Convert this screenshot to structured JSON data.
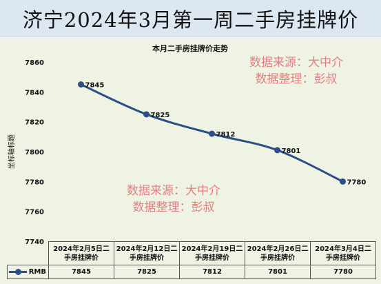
{
  "header": {
    "title": "济宁2024年3月第一周二手房挂牌价"
  },
  "watermarks": [
    {
      "line1": "数据来源：大中介",
      "line2": "数据整理：彭叔"
    },
    {
      "line1": "数据来源：大中介",
      "line2": "数据整理：彭叔"
    }
  ],
  "colors": {
    "series": "#2a4f86",
    "watermark": "#e57f7f",
    "plot_bg": "#eef3e4",
    "banner_bg": "#dce7f1"
  },
  "chart_data": {
    "type": "line",
    "title": "本月二手房挂牌价走势",
    "ylabel": "坐标轴标题",
    "xlabel": "",
    "categories": [
      "2024年2月5日二手房挂牌价",
      "2024年2月12日二手房挂牌价",
      "2024年2月19日二手房挂牌价",
      "2024年2月26日二手房挂牌价",
      "2024年3月4日二手房挂牌价"
    ],
    "series": [
      {
        "name": "RMB",
        "values": [
          7845,
          7825,
          7812,
          7801,
          7780
        ]
      }
    ],
    "ylim": [
      7740,
      7860
    ],
    "yticks": [
      7740,
      7760,
      7780,
      7800,
      7820,
      7840,
      7860
    ],
    "grid": false,
    "legend": "data-table",
    "data_labels": true,
    "smooth": true
  }
}
